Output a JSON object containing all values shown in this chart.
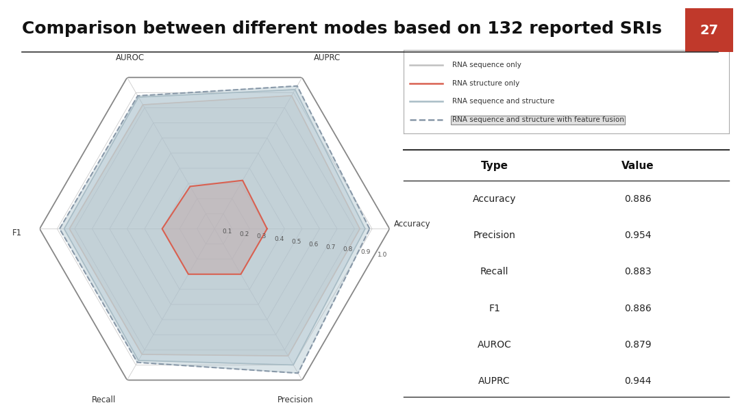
{
  "title": "Comparison between different modes based on 132 reported SRIs",
  "title_fontsize": 18,
  "categories": [
    "Accuracy",
    "AUPRC",
    "AUROC",
    "F1",
    "Recall",
    "Precision"
  ],
  "series": [
    {
      "label": "RNA sequence only",
      "values": [
        0.83,
        0.88,
        0.82,
        0.83,
        0.83,
        0.84
      ],
      "color": "#c0c0c0",
      "fill_color": "#d0d0d0",
      "fill_alpha": 0.38,
      "linewidth": 1.2,
      "linestyle": "-"
    },
    {
      "label": "RNA structure only",
      "values": [
        0.3,
        0.32,
        0.28,
        0.3,
        0.3,
        0.3
      ],
      "color": "#d96050",
      "fill_color": "#e89080",
      "fill_alpha": 0.5,
      "linewidth": 1.5,
      "linestyle": "-"
    },
    {
      "label": "RNA sequence and structure",
      "values": [
        0.86,
        0.92,
        0.87,
        0.86,
        0.87,
        0.9
      ],
      "color": "#a8bcc5",
      "fill_color": "#b0c8d4",
      "fill_alpha": 0.32,
      "linewidth": 1.2,
      "linestyle": "-"
    },
    {
      "label": "RNA sequence and structure with feature fusion",
      "values": [
        0.886,
        0.944,
        0.879,
        0.886,
        0.883,
        0.954
      ],
      "color": "#8898a8",
      "fill_color": "#a0b8c4",
      "fill_alpha": 0.38,
      "linewidth": 1.5,
      "linestyle": "--"
    }
  ],
  "table_data": [
    [
      "Accuracy",
      "0.886"
    ],
    [
      "Precision",
      "0.954"
    ],
    [
      "Recall",
      "0.883"
    ],
    [
      "F1",
      "0.886"
    ],
    [
      "AUROC",
      "0.879"
    ],
    [
      "AUPRC",
      "0.944"
    ]
  ],
  "table_headers": [
    "Type",
    "Value"
  ],
  "bg_color": "#ffffff",
  "radar_grid_color": "#cccccc",
  "radar_line_color": "#888888",
  "tick_values": [
    0.1,
    0.2,
    0.3,
    0.4,
    0.5,
    0.6,
    0.7,
    0.8,
    0.9,
    1.0
  ],
  "page_number": "27",
  "page_bg": "#c0392b"
}
